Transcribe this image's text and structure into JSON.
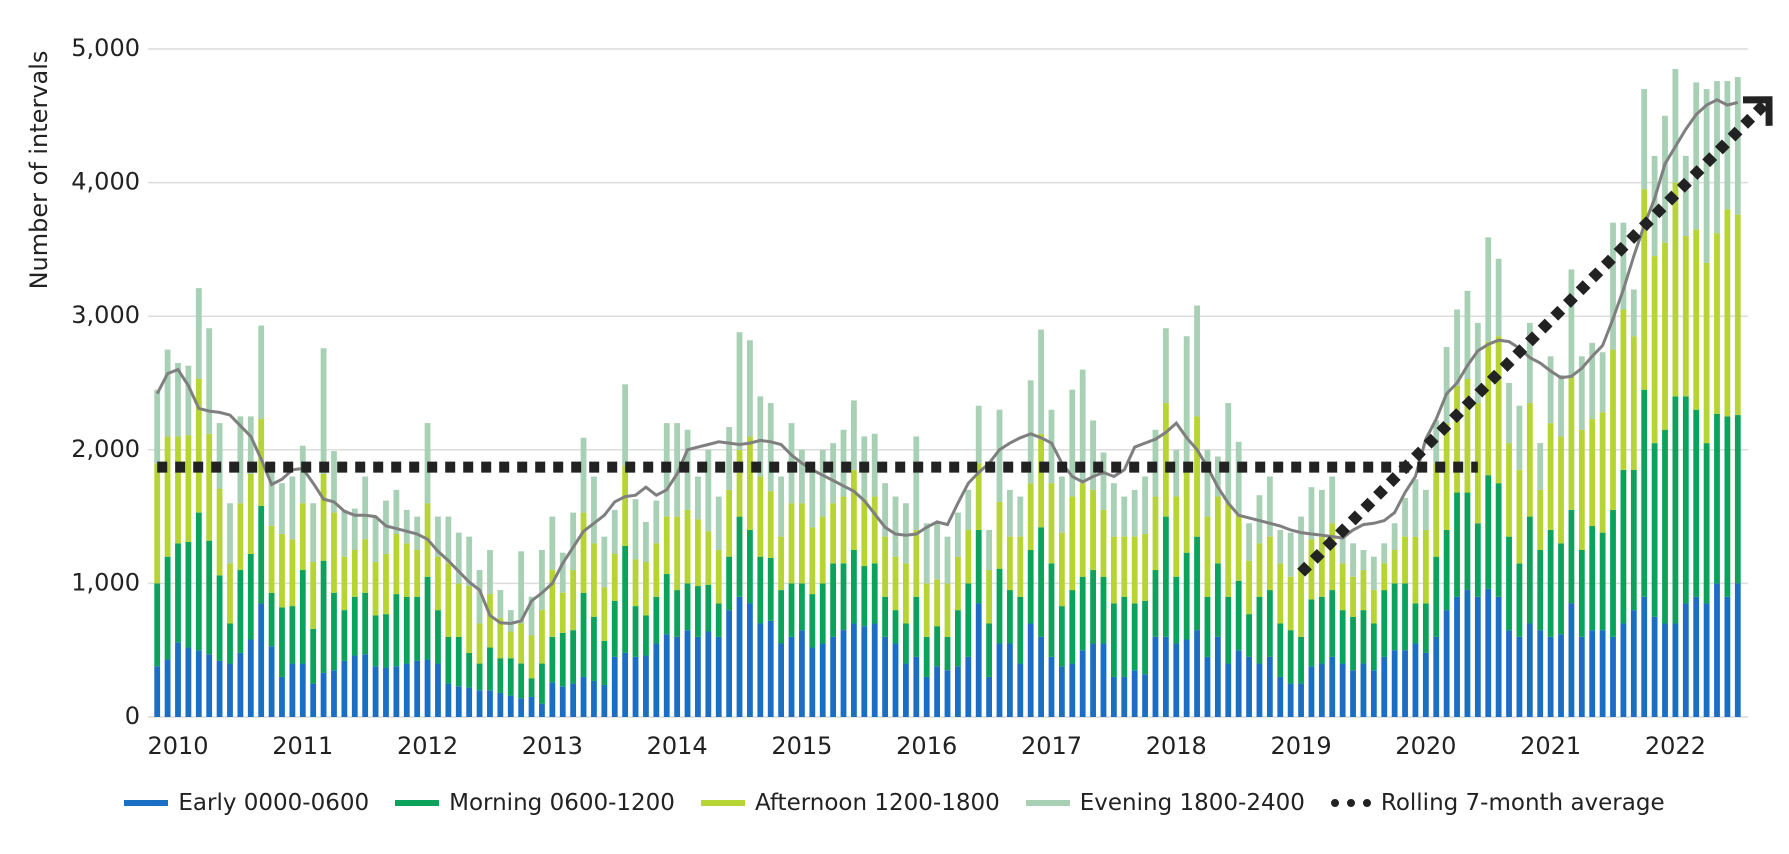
{
  "chart_data": {
    "type": "bar",
    "stacked": true,
    "y_label": "Number of intervals",
    "categories": [
      null,
      null,
      "2010",
      null,
      null,
      null,
      null,
      null,
      null,
      null,
      null,
      null,
      null,
      null,
      "2011",
      null,
      null,
      null,
      null,
      null,
      null,
      null,
      null,
      null,
      null,
      null,
      "2012",
      null,
      null,
      null,
      null,
      null,
      null,
      null,
      null,
      null,
      null,
      null,
      "2013",
      null,
      null,
      null,
      null,
      null,
      null,
      null,
      null,
      null,
      null,
      null,
      "2014",
      null,
      null,
      null,
      null,
      null,
      null,
      null,
      null,
      null,
      null,
      null,
      "2015",
      null,
      null,
      null,
      null,
      null,
      null,
      null,
      null,
      null,
      null,
      null,
      "2016",
      null,
      null,
      null,
      null,
      null,
      null,
      null,
      null,
      null,
      null,
      null,
      "2017",
      null,
      null,
      null,
      null,
      null,
      null,
      null,
      null,
      null,
      null,
      null,
      "2018",
      null,
      null,
      null,
      null,
      null,
      null,
      null,
      null,
      null,
      null,
      null,
      "2019",
      null,
      null,
      null,
      null,
      null,
      null,
      null,
      null,
      null,
      null,
      null,
      "2020",
      null,
      null,
      null,
      null,
      null,
      null,
      null,
      null,
      null,
      null,
      null,
      "2021",
      null,
      null,
      null,
      null,
      null,
      null,
      null,
      null,
      null,
      null,
      null,
      "2022",
      null,
      null,
      null,
      null,
      null,
      null
    ],
    "series": [
      {
        "name": "Early 0000-0600",
        "color": "#1a6fc4",
        "values": [
          380,
          430,
          560,
          520,
          500,
          470,
          420,
          400,
          480,
          580,
          850,
          530,
          300,
          400,
          400,
          250,
          330,
          350,
          420,
          460,
          470,
          380,
          370,
          380,
          400,
          420,
          430,
          400,
          250,
          230,
          220,
          200,
          200,
          180,
          160,
          140,
          150,
          100,
          260,
          230,
          250,
          300,
          270,
          240,
          450,
          480,
          450,
          460,
          550,
          620,
          600,
          650,
          600,
          640,
          600,
          800,
          900,
          850,
          700,
          720,
          550,
          600,
          650,
          520,
          550,
          600,
          650,
          700,
          680,
          700,
          600,
          550,
          400,
          450,
          300,
          380,
          350,
          380,
          450,
          850,
          300,
          550,
          550,
          400,
          700,
          600,
          450,
          380,
          400,
          500,
          550,
          550,
          300,
          300,
          350,
          320,
          600,
          600,
          550,
          580,
          650,
          450,
          600,
          400,
          500,
          450,
          400,
          450,
          300,
          250,
          250,
          380,
          400,
          450,
          400,
          350,
          400,
          350,
          450,
          500,
          500,
          550,
          480,
          600,
          800,
          900,
          950,
          900,
          960,
          900,
          650,
          600,
          700,
          650,
          600,
          620,
          850,
          600,
          650,
          650,
          600,
          700,
          800,
          900,
          750,
          700,
          700,
          850,
          900,
          850,
          1000,
          900,
          1000
        ]
      },
      {
        "name": "Morning 0600-1200",
        "color": "#0ba35b",
        "values": [
          620,
          770,
          740,
          790,
          1030,
          850,
          640,
          300,
          620,
          640,
          730,
          400,
          520,
          430,
          700,
          410,
          840,
          580,
          380,
          440,
          460,
          380,
          400,
          540,
          500,
          480,
          620,
          400,
          350,
          370,
          260,
          200,
          320,
          260,
          280,
          260,
          140,
          300,
          340,
          400,
          400,
          630,
          480,
          330,
          420,
          800,
          380,
          300,
          350,
          450,
          350,
          350,
          380,
          350,
          250,
          400,
          600,
          550,
          500,
          470,
          400,
          400,
          350,
          400,
          450,
          550,
          500,
          550,
          450,
          450,
          300,
          250,
          300,
          450,
          300,
          300,
          250,
          420,
          550,
          550,
          400,
          560,
          400,
          500,
          550,
          820,
          700,
          450,
          550,
          550,
          550,
          500,
          550,
          600,
          500,
          550,
          500,
          900,
          500,
          650,
          700,
          450,
          550,
          500,
          520,
          320,
          500,
          500,
          400,
          400,
          350,
          500,
          500,
          500,
          400,
          400,
          400,
          350,
          500,
          500,
          500,
          300,
          370,
          600,
          600,
          780,
          730,
          550,
          850,
          850,
          700,
          550,
          800,
          600,
          800,
          680,
          700,
          650,
          780,
          730,
          950,
          1150,
          1050,
          1550,
          1300,
          1450,
          1700,
          1550,
          1400,
          1200,
          1270,
          1350,
          1260
        ]
      },
      {
        "name": "Afternoon 1200-1800",
        "color": "#b6d433",
        "values": [
          900,
          900,
          800,
          800,
          1000,
          800,
          650,
          450,
          500,
          600,
          650,
          500,
          550,
          500,
          500,
          500,
          650,
          600,
          400,
          350,
          400,
          400,
          450,
          450,
          400,
          350,
          550,
          400,
          550,
          400,
          500,
          300,
          400,
          300,
          200,
          300,
          320,
          400,
          500,
          300,
          450,
          600,
          550,
          400,
          350,
          600,
          350,
          400,
          400,
          430,
          550,
          550,
          500,
          400,
          400,
          500,
          500,
          700,
          600,
          500,
          400,
          600,
          600,
          500,
          500,
          450,
          500,
          600,
          500,
          500,
          450,
          400,
          450,
          500,
          400,
          350,
          400,
          400,
          400,
          500,
          400,
          500,
          400,
          450,
          500,
          700,
          600,
          550,
          700,
          700,
          600,
          500,
          500,
          450,
          500,
          500,
          550,
          850,
          600,
          650,
          900,
          600,
          500,
          700,
          500,
          400,
          400,
          400,
          450,
          400,
          500,
          450,
          450,
          500,
          350,
          300,
          300,
          250,
          200,
          250,
          350,
          500,
          550,
          700,
          800,
          800,
          850,
          900,
          1000,
          1100,
          700,
          700,
          850,
          450,
          800,
          800,
          1000,
          900,
          800,
          900,
          1200,
          1200,
          1000,
          1500,
          1400,
          1400,
          1600,
          1200,
          1350,
          1350,
          1350,
          1550,
          1500
        ]
      },
      {
        "name": "Evening 1800-2400",
        "color": "#a7d0b5",
        "values": [
          550,
          650,
          550,
          520,
          680,
          790,
          490,
          450,
          650,
          430,
          700,
          400,
          380,
          470,
          430,
          440,
          940,
          460,
          350,
          310,
          470,
          340,
          400,
          330,
          250,
          250,
          600,
          300,
          350,
          380,
          370,
          400,
          330,
          210,
          160,
          540,
          290,
          450,
          400,
          300,
          430,
          560,
          500,
          380,
          330,
          610,
          450,
          300,
          320,
          700,
          700,
          600,
          320,
          610,
          400,
          470,
          880,
          720,
          600,
          660,
          450,
          600,
          400,
          480,
          500,
          450,
          500,
          520,
          470,
          470,
          400,
          450,
          450,
          700,
          450,
          420,
          350,
          330,
          300,
          430,
          300,
          690,
          350,
          300,
          770,
          780,
          550,
          420,
          800,
          850,
          520,
          430,
          400,
          300,
          350,
          430,
          500,
          560,
          350,
          970,
          830,
          500,
          300,
          750,
          540,
          280,
          360,
          450,
          250,
          330,
          400,
          390,
          350,
          350,
          280,
          250,
          150,
          250,
          150,
          200,
          290,
          430,
          300,
          320,
          570,
          570,
          660,
          600,
          780,
          580,
          450,
          480,
          600,
          350,
          500,
          460,
          800,
          550,
          570,
          450,
          950,
          650,
          350,
          750,
          750,
          950,
          850,
          600,
          1100,
          1300,
          1140,
          960,
          1030
        ]
      }
    ],
    "line": {
      "name": "Rolling 7-month average",
      "color": "#7f7f7f",
      "legend_color": "#222222",
      "values": [
        2420,
        2570,
        2600,
        2480,
        2310,
        2290,
        2280,
        2260,
        2180,
        2100,
        1930,
        1740,
        1780,
        1850,
        1860,
        1750,
        1630,
        1610,
        1540,
        1510,
        1510,
        1500,
        1430,
        1410,
        1390,
        1370,
        1330,
        1240,
        1170,
        1090,
        1010,
        950,
        760,
        705,
        700,
        720,
        870,
        930,
        1000,
        1150,
        1270,
        1390,
        1450,
        1510,
        1610,
        1650,
        1660,
        1720,
        1660,
        1700,
        1820,
        2000,
        2020,
        2040,
        2060,
        2050,
        2040,
        2050,
        2070,
        2060,
        2040,
        1960,
        1900,
        1850,
        1810,
        1770,
        1730,
        1690,
        1620,
        1520,
        1420,
        1370,
        1360,
        1370,
        1420,
        1460,
        1440,
        1600,
        1750,
        1830,
        1900,
        2000,
        2050,
        2090,
        2120,
        2090,
        2050,
        1900,
        1800,
        1760,
        1800,
        1830,
        1800,
        1850,
        2020,
        2050,
        2080,
        2130,
        2200,
        2090,
        2000,
        1870,
        1720,
        1600,
        1510,
        1490,
        1470,
        1450,
        1430,
        1400,
        1380,
        1370,
        1360,
        1350,
        1340,
        1400,
        1440,
        1450,
        1470,
        1530,
        1680,
        1800,
        2080,
        2230,
        2420,
        2500,
        2630,
        2740,
        2790,
        2820,
        2810,
        2760,
        2690,
        2650,
        2590,
        2540,
        2550,
        2610,
        2700,
        2780,
        2980,
        3200,
        3450,
        3680,
        3880,
        4140,
        4270,
        4400,
        4510,
        4580,
        4620,
        4580,
        4600
      ]
    },
    "trend_lines": [
      {
        "from": 0,
        "to": 127,
        "values": [
          1870,
          1870
        ],
        "color": "#222222",
        "arrow": false
      },
      {
        "from": 110,
        "to": 155,
        "values": [
          1080,
          4620
        ],
        "color": "#222222",
        "arrow": true
      }
    ],
    "ylim": [
      0,
      5000
    ],
    "yticks": [
      0,
      {
        "value": 1000,
        "label": "1,000"
      },
      {
        "value": 2000,
        "label": "2,000"
      },
      {
        "value": 3000,
        "label": "3,000"
      },
      {
        "value": 4000,
        "label": "4,000"
      },
      {
        "value": 5000,
        "label": "5,000"
      }
    ],
    "grid": true,
    "legend": "bottom"
  }
}
